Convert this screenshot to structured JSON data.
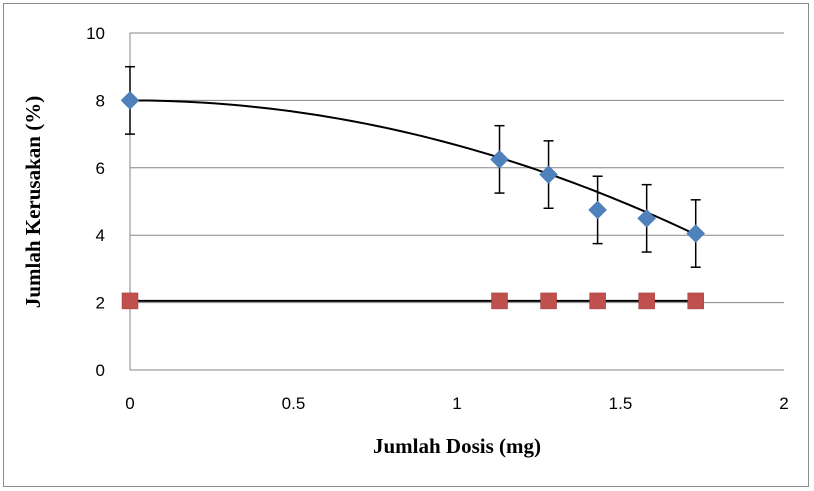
{
  "chart_data": {
    "type": "scatter",
    "title": "",
    "xlabel": "Jumlah Dosis (mg)",
    "ylabel": "Jumlah Kerusakan (%)",
    "xlim": [
      0,
      2
    ],
    "ylim": [
      0,
      10
    ],
    "x_ticks": [
      "0",
      "0.5",
      "1",
      "1.5",
      "2"
    ],
    "y_ticks": [
      "0",
      "2",
      "4",
      "6",
      "8",
      "10"
    ],
    "grid": "horizontal",
    "legend": "none",
    "series": [
      {
        "color": "#4f81bd",
        "marker": "diamond",
        "x": [
          0,
          1.13,
          1.28,
          1.43,
          1.58,
          1.73
        ],
        "y": [
          8.0,
          6.25,
          5.8,
          4.75,
          4.5,
          4.05
        ],
        "error": [
          1.0,
          1.0,
          1.0,
          1.0,
          1.0,
          1.0
        ],
        "trendline": {
          "type": "polynomial",
          "coefficients": [
            8.0,
            0.0,
            -1.33
          ]
        }
      },
      {
        "color": "#c0504d",
        "marker": "square",
        "x": [
          0,
          1.13,
          1.28,
          1.43,
          1.58,
          1.73
        ],
        "y": [
          2.05,
          2.05,
          2.05,
          2.05,
          2.05,
          2.05
        ],
        "trendline": {
          "type": "linear",
          "coefficients": [
            2.05,
            0.0
          ]
        }
      }
    ]
  }
}
